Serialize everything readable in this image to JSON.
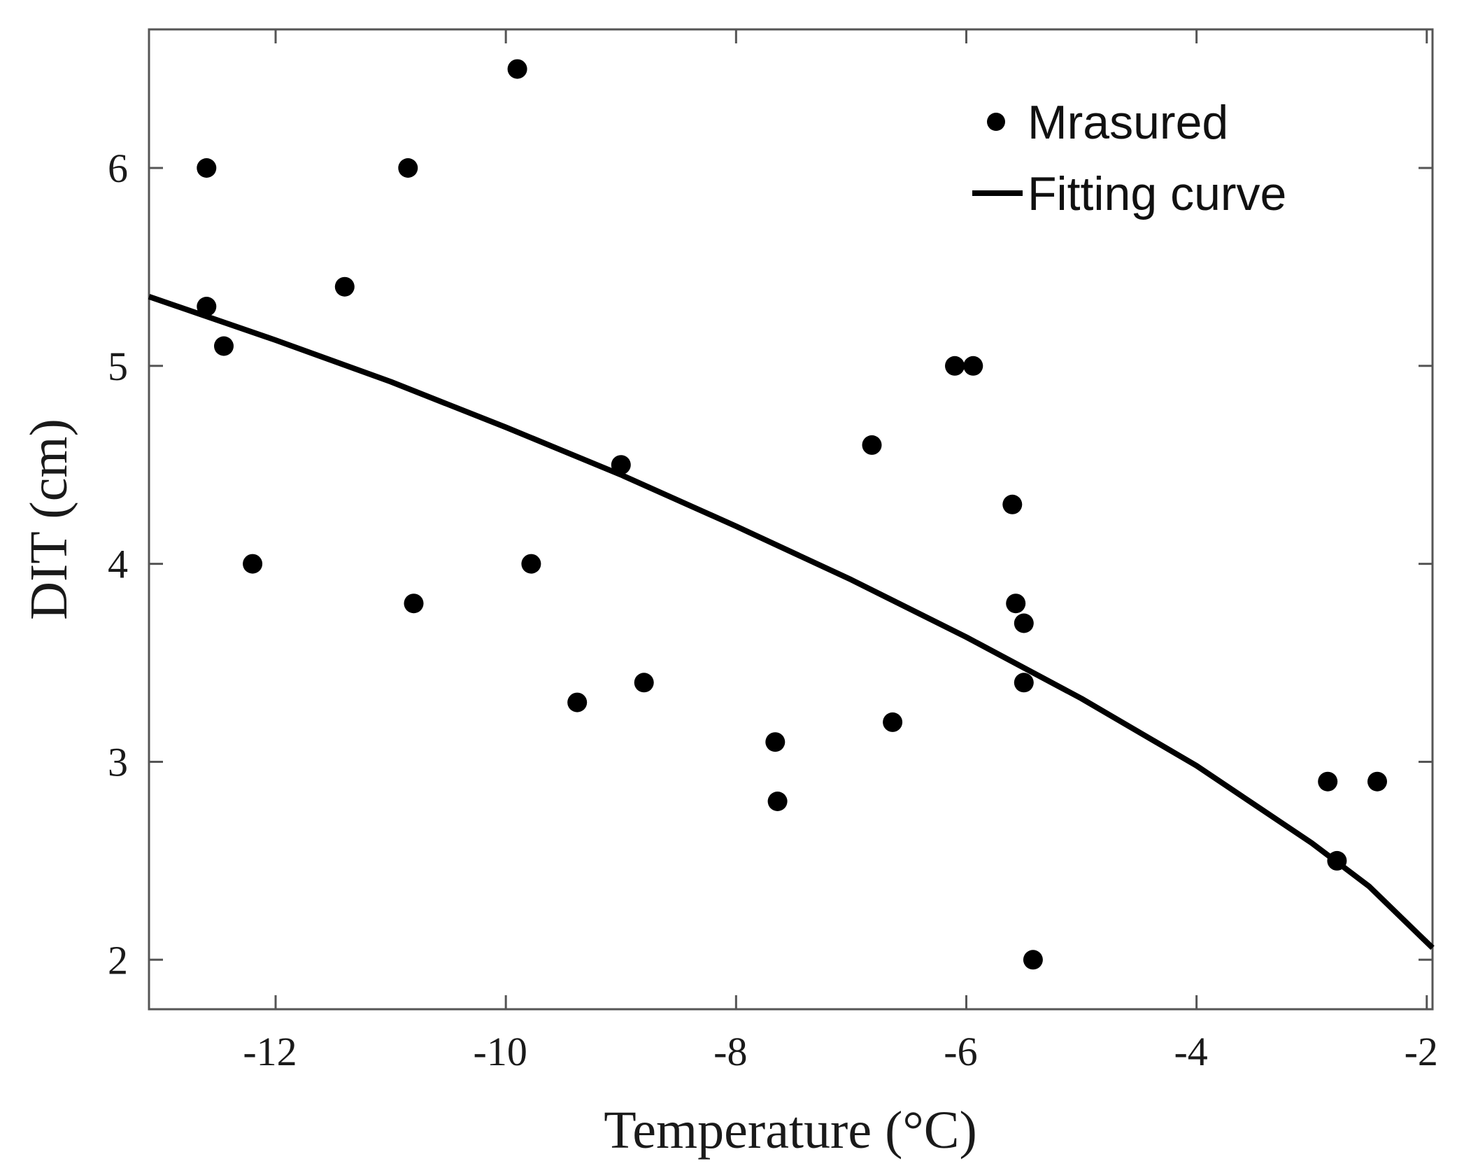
{
  "chart_data": {
    "type": "scatter",
    "title": "",
    "xlabel": "Temperature  (°C)",
    "ylabel": "DIT (cm)",
    "xlim": [
      -13.1,
      -1.95
    ],
    "ylim": [
      1.75,
      6.7
    ],
    "xticks": [
      -12,
      -10,
      -8,
      -6,
      -4,
      -2
    ],
    "yticks": [
      2,
      3,
      4,
      5,
      6
    ],
    "grid": false,
    "legend_position": "top-right",
    "colors": {
      "marker": "#000000",
      "line": "#000000",
      "axes": "#555555"
    },
    "series": [
      {
        "name": "Mrasured",
        "kind": "scatter",
        "points": [
          {
            "x": -12.6,
            "y": 6.0
          },
          {
            "x": -12.6,
            "y": 5.3
          },
          {
            "x": -12.45,
            "y": 5.1
          },
          {
            "x": -12.2,
            "y": 4.0
          },
          {
            "x": -11.4,
            "y": 5.4
          },
          {
            "x": -10.85,
            "y": 6.0
          },
          {
            "x": -10.8,
            "y": 3.8
          },
          {
            "x": -9.9,
            "y": 6.5
          },
          {
            "x": -9.78,
            "y": 4.0
          },
          {
            "x": -9.38,
            "y": 3.3
          },
          {
            "x": -9.0,
            "y": 4.5
          },
          {
            "x": -8.8,
            "y": 3.4
          },
          {
            "x": -7.66,
            "y": 3.1
          },
          {
            "x": -7.64,
            "y": 2.8
          },
          {
            "x": -6.82,
            "y": 4.6
          },
          {
            "x": -6.64,
            "y": 3.2
          },
          {
            "x": -6.1,
            "y": 5.0
          },
          {
            "x": -5.94,
            "y": 5.0
          },
          {
            "x": -5.6,
            "y": 4.3
          },
          {
            "x": -5.57,
            "y": 3.8
          },
          {
            "x": -5.5,
            "y": 3.7
          },
          {
            "x": -5.5,
            "y": 3.4
          },
          {
            "x": -5.42,
            "y": 2.0
          },
          {
            "x": -2.86,
            "y": 2.9
          },
          {
            "x": -2.78,
            "y": 2.5
          },
          {
            "x": -2.43,
            "y": 2.9
          }
        ]
      },
      {
        "name": "Fitting curve",
        "kind": "line",
        "points": [
          {
            "x": -13.1,
            "y": 5.35
          },
          {
            "x": -12.0,
            "y": 5.13
          },
          {
            "x": -11.0,
            "y": 4.92
          },
          {
            "x": -10.0,
            "y": 4.69
          },
          {
            "x": -9.0,
            "y": 4.45
          },
          {
            "x": -8.0,
            "y": 4.19
          },
          {
            "x": -7.0,
            "y": 3.92
          },
          {
            "x": -6.0,
            "y": 3.63
          },
          {
            "x": -5.0,
            "y": 3.32
          },
          {
            "x": -4.0,
            "y": 2.98
          },
          {
            "x": -3.0,
            "y": 2.59
          },
          {
            "x": -2.5,
            "y": 2.37
          },
          {
            "x": -1.95,
            "y": 2.06
          }
        ]
      }
    ]
  }
}
